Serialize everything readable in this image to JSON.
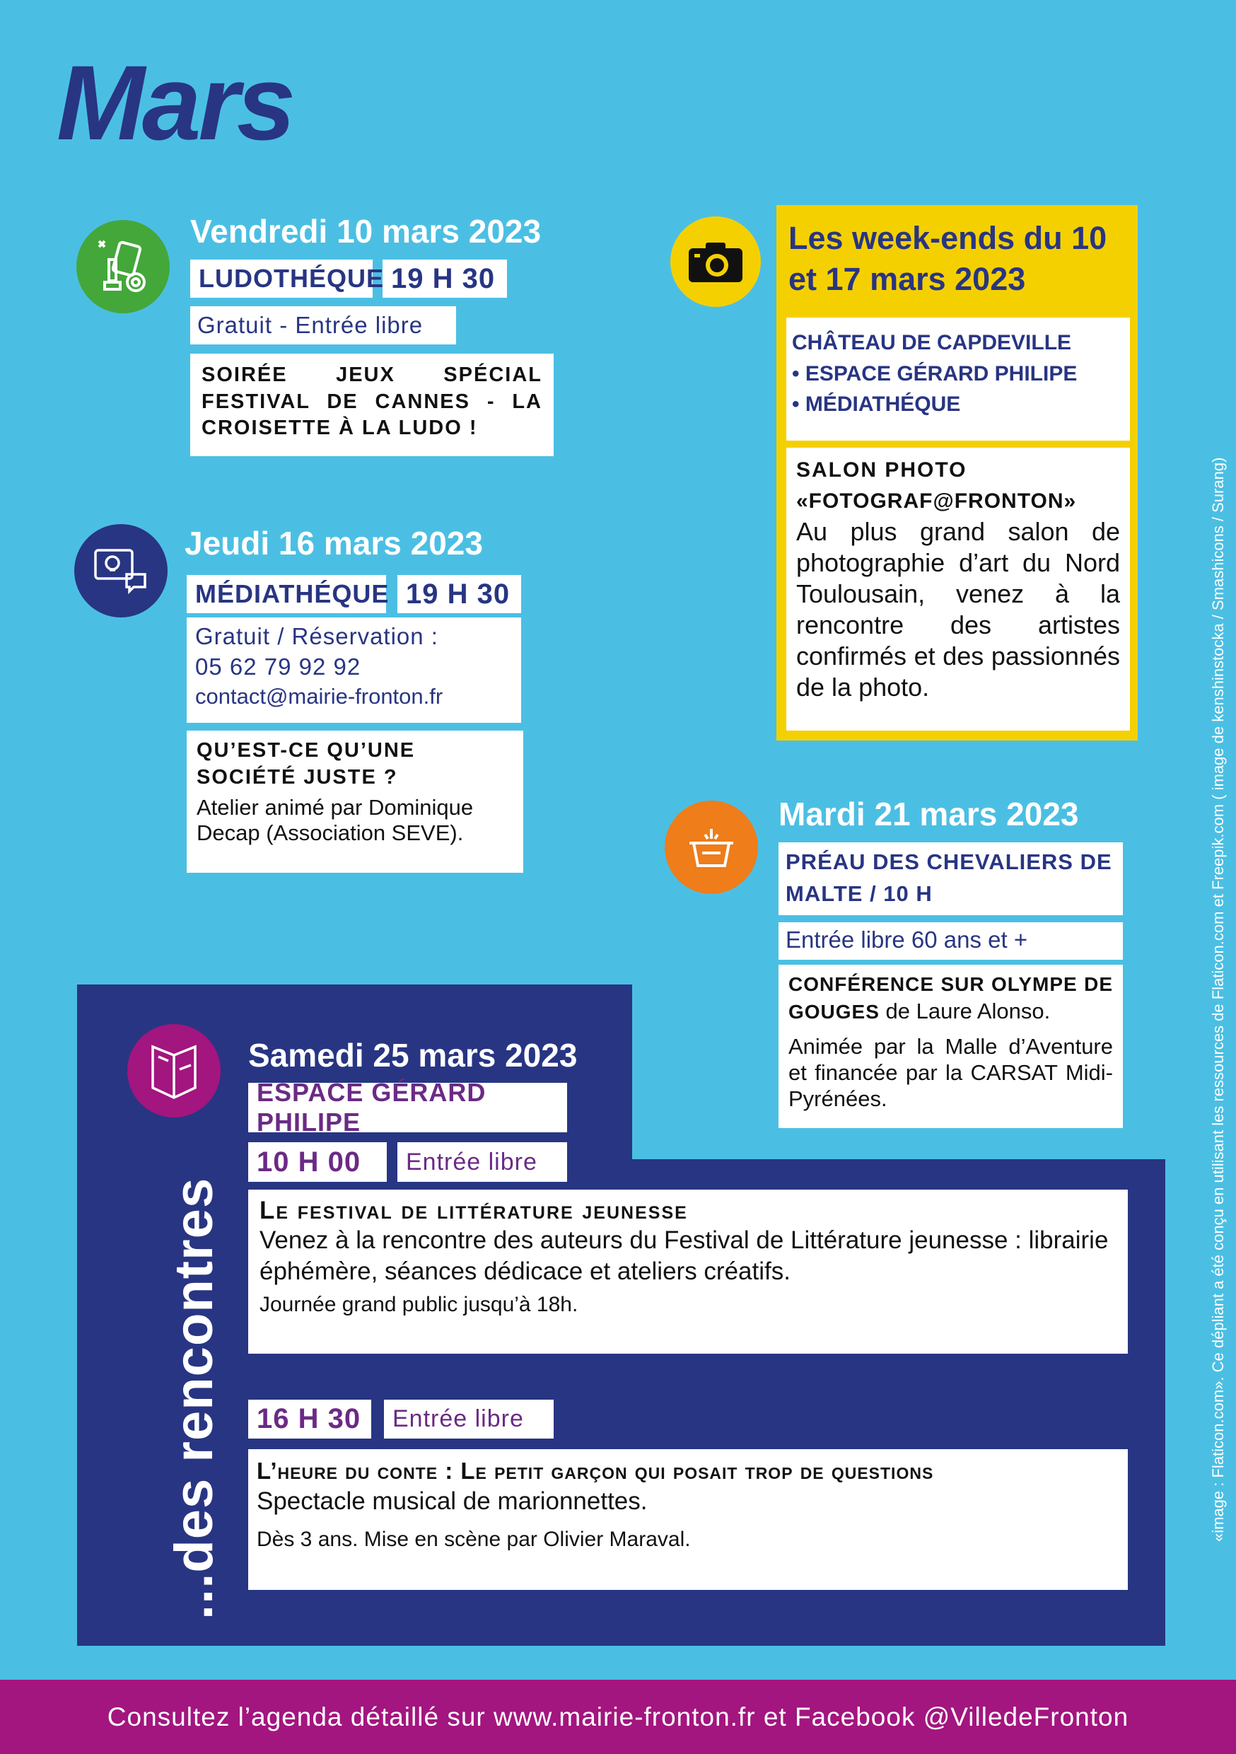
{
  "header": {
    "month": "Mars"
  },
  "colors": {
    "background": "#4bbfe3",
    "navy": "#283583",
    "yellow": "#f5d000",
    "green": "#44a73a",
    "orange": "#ee7d1a",
    "purple": "#a3157f",
    "text_purple": "#6b2a85"
  },
  "event1": {
    "icon": "game-pieces-icon",
    "date": "Vendredi 10 mars 2023",
    "place": "LUDOTHÉQUE",
    "time": "19 H 30",
    "price": "Gratuit - Entrée libre",
    "desc": "SOIRÉE JEUX SPÉCIAL FESTIVAL DE CANNES - LA CROISETTE À LA LUDO !"
  },
  "event2": {
    "icon": "idea-chat-icon",
    "date": "Jeudi 16 mars 2023",
    "place": "MÉDIATHÉQUE",
    "time": "19 H 30",
    "price": "Gratuit / Réservation :",
    "phone": "05 62 79 92 92",
    "email": "contact@mairie-fronton.fr",
    "title": "QU’EST-CE QU’UNE SOCIÉTÉ JUSTE ?",
    "desc": "Atelier animé par Dominique Decap (Association SEVE)."
  },
  "event3": {
    "icon": "camera-icon",
    "date_line1": "Les week-ends du 10",
    "date_line2": "et 17 mars 2023",
    "place1": "CHÂTEAU DE CAPDEVILLE",
    "place2": "• ESPACE GÉRARD PHILIPE",
    "place3": "• MÉDIATHÉQUE",
    "title1": "SALON PHOTO",
    "title2": "«FOTOGRAF@FRONTON»",
    "desc": "Au plus grand salon de photographie d’art du Nord Toulousain, venez à la rencontre des artistes confirmés et des passionnés de la photo."
  },
  "event4": {
    "icon": "podium-icon",
    "date": "Mardi 21 mars 2023",
    "place": "PRÉAU DES CHEVALIERS DE MALTE / 10 H",
    "price": "Entrée libre 60 ans et +",
    "title": "CONFÉRENCE SUR OLYMPE DE GOUGES",
    "author": " de Laure Alonso.",
    "desc": "Animée par la Malle d’Aventure et financée par la CARSAT Midi-Pyrénées."
  },
  "event5": {
    "icon": "book-icon",
    "section": "...des rencontres",
    "date": "Samedi 25 mars 2023",
    "place": "ESPACE GÉRARD PHILIPE",
    "session1": {
      "time": "10 H 00",
      "price": "Entrée libre",
      "title": "Le festival de littérature jeunesse",
      "desc": "Venez à la rencontre des auteurs du Festival de Littérature jeunesse : librairie éphémère, séances dédicace et ateliers créatifs.",
      "note": "Journée grand public jusqu’à 18h."
    },
    "session2": {
      "time": "16 H 30",
      "price": "Entrée libre",
      "title": "L’heure du conte : Le petit garçon qui posait trop de questions",
      "desc": "Spectacle musical de marionnettes.",
      "note": "Dès 3 ans. Mise en scène par Olivier Maraval."
    }
  },
  "credits": "«image : Flaticon.com». Ce dépliant a été conçu en utilisant les ressources de Flaticon.com et Freepik.com ( image de kenshinstocka / Smashicons / Surang)",
  "footer": {
    "text": "Consultez l’agenda détaillé sur www.mairie-fronton.fr et Facebook @VilledeFronton"
  }
}
